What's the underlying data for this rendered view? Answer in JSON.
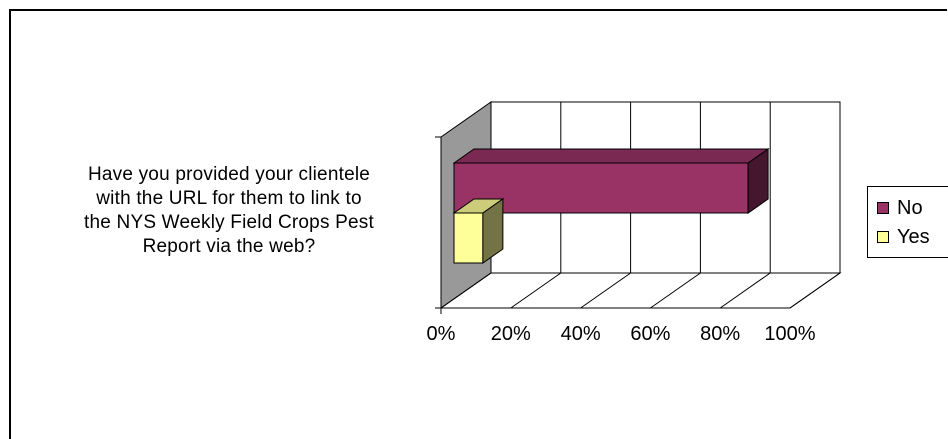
{
  "chart_data": {
    "type": "bar",
    "orientation": "horizontal",
    "three_d": true,
    "stacked": false,
    "categories": [
      "Have you provided your clientele with the URL for them to link to the NYS Weekly Field Crops Pest Report via the web?"
    ],
    "category_lines": [
      "Have you provided your clientele",
      "with the URL for them to link to",
      "the NYS Weekly Field Crops Pest",
      "Report via the web?"
    ],
    "series": [
      {
        "name": "No",
        "values": [
          88
        ],
        "color": "#993366"
      },
      {
        "name": "Yes",
        "values": [
          12
        ],
        "color": "#ffff99"
      }
    ],
    "xticks": [
      "0%",
      "20%",
      "40%",
      "60%",
      "80%",
      "100%"
    ],
    "xlim": [
      0,
      100
    ],
    "grid": true,
    "legend": "right"
  }
}
